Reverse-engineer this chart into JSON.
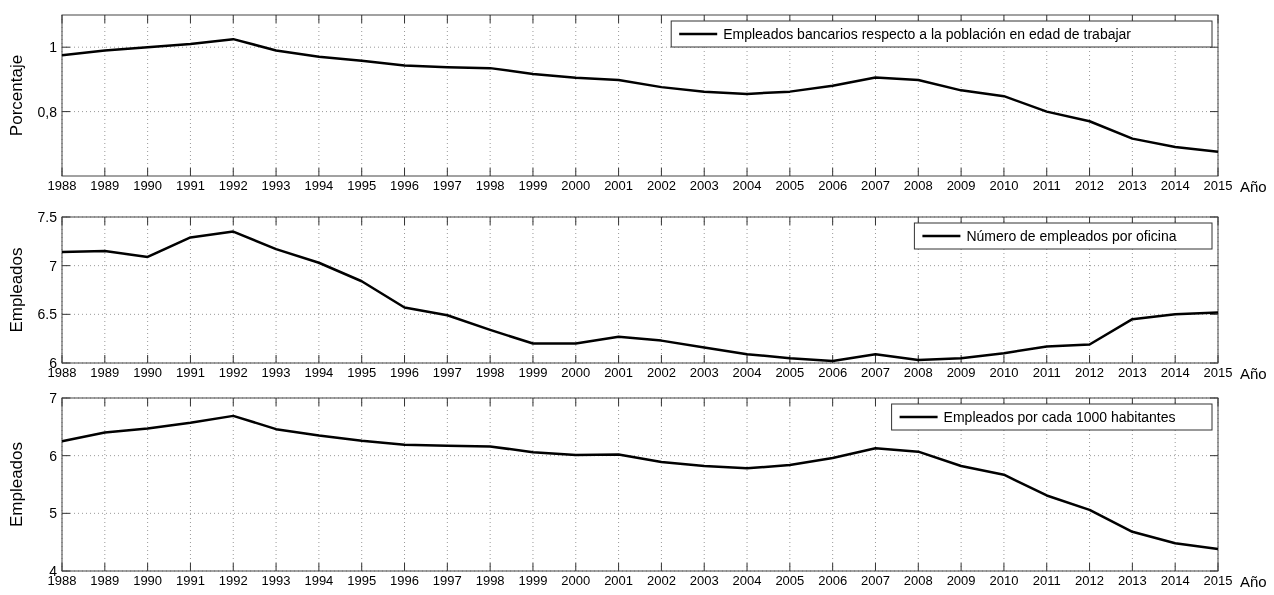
{
  "chart_data": [
    {
      "type": "line",
      "ylabel": "Porcentaje",
      "xlabel": "Año",
      "x": [
        1988,
        1989,
        1990,
        1991,
        1992,
        1993,
        1994,
        1995,
        1996,
        1997,
        1998,
        1999,
        2000,
        2001,
        2002,
        2003,
        2004,
        2005,
        2006,
        2007,
        2008,
        2009,
        2010,
        2011,
        2012,
        2013,
        2014,
        2015
      ],
      "series": [
        {
          "name": "Empleados bancarios respecto a la población en edad de trabajar",
          "color": "#000000",
          "values": [
            0.975,
            0.99,
            1.0,
            1.01,
            1.025,
            0.99,
            0.97,
            0.958,
            0.943,
            0.938,
            0.935,
            0.917,
            0.905,
            0.898,
            0.876,
            0.862,
            0.855,
            0.862,
            0.88,
            0.906,
            0.898,
            0.866,
            0.848,
            0.8,
            0.77,
            0.716,
            0.69,
            0.675
          ]
        }
      ],
      "xlim": [
        1988,
        2015
      ],
      "xticks": [
        1988,
        1989,
        1990,
        1991,
        1992,
        1993,
        1994,
        1995,
        1996,
        1997,
        1998,
        1999,
        2000,
        2001,
        2002,
        2003,
        2004,
        2005,
        2006,
        2007,
        2008,
        2009,
        2010,
        2011,
        2012,
        2013,
        2014,
        2015
      ],
      "ylim": [
        0.6,
        1.1
      ],
      "yticks": [
        {
          "value": 0.8,
          "label": "0,8"
        },
        1
      ],
      "grid": true,
      "legend": "top right"
    },
    {
      "type": "line",
      "ylabel": "Empleados",
      "xlabel": "Año",
      "x": [
        1988,
        1989,
        1990,
        1991,
        1992,
        1993,
        1994,
        1995,
        1996,
        1997,
        1998,
        1999,
        2000,
        2001,
        2002,
        2003,
        2004,
        2005,
        2006,
        2007,
        2008,
        2009,
        2010,
        2011,
        2012,
        2013,
        2014,
        2015
      ],
      "series": [
        {
          "name": "Número de empleados por oficina",
          "color": "#000000",
          "values": [
            7.14,
            7.15,
            7.09,
            7.29,
            7.35,
            7.17,
            7.03,
            6.84,
            6.57,
            6.49,
            6.34,
            6.2,
            6.2,
            6.27,
            6.23,
            6.16,
            6.09,
            6.05,
            6.02,
            6.09,
            6.03,
            6.05,
            6.1,
            6.17,
            6.19,
            6.45,
            6.5,
            6.52
          ]
        }
      ],
      "xlim": [
        1988,
        2015
      ],
      "xticks": [
        1988,
        1989,
        1990,
        1991,
        1992,
        1993,
        1994,
        1995,
        1996,
        1997,
        1998,
        1999,
        2000,
        2001,
        2002,
        2003,
        2004,
        2005,
        2006,
        2007,
        2008,
        2009,
        2010,
        2011,
        2012,
        2013,
        2014,
        2015
      ],
      "ylim": [
        6,
        7.5
      ],
      "yticks": [
        6,
        6.5,
        7,
        7.5
      ],
      "grid": true,
      "legend": "top right"
    },
    {
      "type": "line",
      "ylabel": "Empleados",
      "xlabel": "Año",
      "x": [
        1988,
        1989,
        1990,
        1991,
        1992,
        1993,
        1994,
        1995,
        1996,
        1997,
        1998,
        1999,
        2000,
        2001,
        2002,
        2003,
        2004,
        2005,
        2006,
        2007,
        2008,
        2009,
        2010,
        2011,
        2012,
        2013,
        2014,
        2015
      ],
      "series": [
        {
          "name": "Empleados por cada 1000 habitantes",
          "color": "#000000",
          "values": [
            6.25,
            6.4,
            6.47,
            6.57,
            6.69,
            6.46,
            6.35,
            6.26,
            6.19,
            6.17,
            6.16,
            6.06,
            6.01,
            6.02,
            5.89,
            5.82,
            5.78,
            5.84,
            5.96,
            6.13,
            6.07,
            5.82,
            5.67,
            5.31,
            5.06,
            4.68,
            4.48,
            4.38
          ]
        }
      ],
      "xlim": [
        1988,
        2015
      ],
      "xticks": [
        1988,
        1989,
        1990,
        1991,
        1992,
        1993,
        1994,
        1995,
        1996,
        1997,
        1998,
        1999,
        2000,
        2001,
        2002,
        2003,
        2004,
        2005,
        2006,
        2007,
        2008,
        2009,
        2010,
        2011,
        2012,
        2013,
        2014,
        2015
      ],
      "ylim": [
        4,
        7
      ],
      "yticks": [
        4,
        5,
        6,
        7
      ],
      "grid": true,
      "legend": "top right"
    }
  ]
}
